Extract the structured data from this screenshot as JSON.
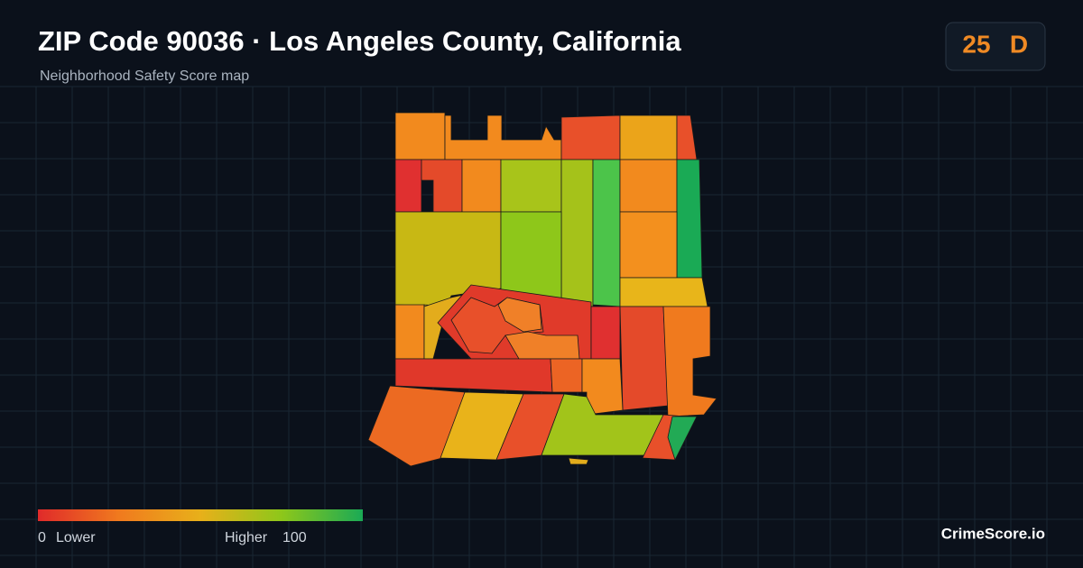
{
  "header": {
    "title": "ZIP Code 90036 · Los Angeles County, California",
    "subtitle": "Neighborhood Safety Score map"
  },
  "score": {
    "value": 25,
    "grade": "D"
  },
  "legend": {
    "min": 0,
    "min_label": "Lower",
    "max_label": "Higher",
    "max": 100
  },
  "brand": "CrimeScore.io"
}
